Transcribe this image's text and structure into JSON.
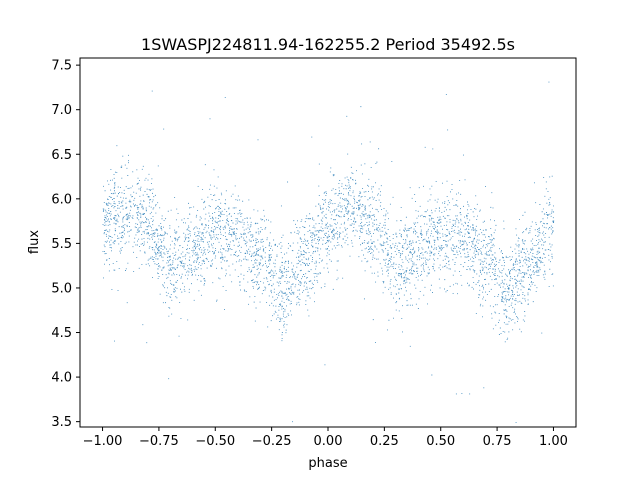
{
  "chart_data": {
    "type": "scatter",
    "title": "1SWASPJ224811.94-162255.2 Period 35492.5s",
    "xlabel": "phase",
    "ylabel": "flux",
    "xlim": [
      -1.1,
      1.1
    ],
    "ylim": [
      3.44,
      7.58
    ],
    "x_ticks": [
      "−1.00",
      "−0.75",
      "−0.50",
      "−0.25",
      "0.00",
      "0.25",
      "0.50",
      "0.75",
      "1.00"
    ],
    "x_tick_values": [
      -1.0,
      -0.75,
      -0.5,
      -0.25,
      0.0,
      0.25,
      0.5,
      0.75,
      1.0
    ],
    "y_ticks": [
      "3.5",
      "4.0",
      "4.5",
      "5.0",
      "5.5",
      "6.0",
      "6.5",
      "7.0",
      "7.5"
    ],
    "y_tick_values": [
      3.5,
      4.0,
      4.5,
      5.0,
      5.5,
      6.0,
      6.5,
      7.0,
      7.5
    ],
    "grid": false,
    "legend": "none",
    "point_color": "#1f77b4",
    "series": [
      {
        "curve_phase": [
          -1.0,
          -0.9,
          -0.8,
          -0.7,
          -0.6,
          -0.5,
          -0.4,
          -0.3,
          -0.2,
          -0.1,
          0.0,
          0.1,
          0.2,
          0.3,
          0.4,
          0.5,
          0.6,
          0.7,
          0.8,
          0.9,
          1.0
        ],
        "curve_flux": [
          5.7,
          5.88,
          5.7,
          5.25,
          5.45,
          5.62,
          5.55,
          5.3,
          4.95,
          5.3,
          5.7,
          5.88,
          5.7,
          5.25,
          5.45,
          5.62,
          5.55,
          5.3,
          4.95,
          5.3,
          5.7
        ],
        "scatter_sigma": 0.26,
        "approx_points": 9000
      }
    ]
  }
}
